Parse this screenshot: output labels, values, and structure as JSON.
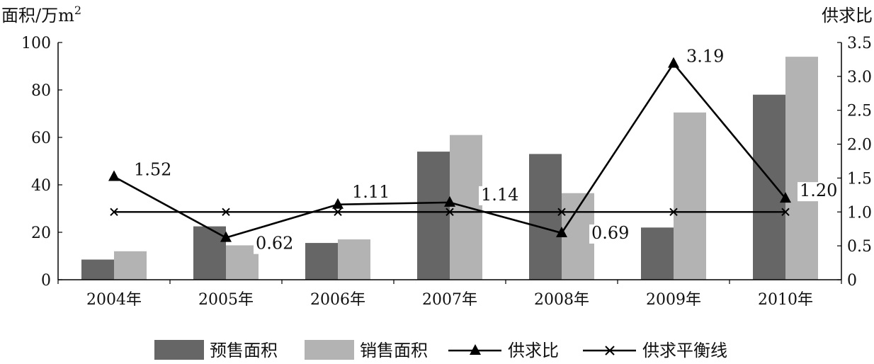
{
  "chart_data": {
    "type": "bar",
    "categories": [
      "2004年",
      "2005年",
      "2006年",
      "2007年",
      "2008年",
      "2009年",
      "2010年"
    ],
    "series": [
      {
        "name": "预售面积",
        "type": "bar",
        "axis": "left",
        "color": "#666666",
        "values": [
          8.5,
          22.5,
          15.5,
          54,
          53,
          22,
          78
        ]
      },
      {
        "name": "销售面积",
        "type": "bar",
        "axis": "left",
        "color": "#b3b3b3",
        "values": [
          12,
          14.5,
          17,
          61,
          36.5,
          70.5,
          94
        ]
      },
      {
        "name": "供求比",
        "type": "line",
        "axis": "right",
        "marker": "triangle",
        "color": "#000000",
        "values": [
          1.52,
          0.62,
          1.11,
          1.14,
          0.69,
          3.19,
          1.2
        ],
        "labels": [
          "1.52",
          "0.62",
          "1.11",
          "1.14",
          "0.69",
          "3.19",
          "1.20"
        ]
      },
      {
        "name": "供求平衡线",
        "type": "line",
        "axis": "right",
        "marker": "x",
        "color": "#000000",
        "values": [
          1,
          1,
          1,
          1,
          1,
          1,
          1
        ]
      }
    ],
    "ylabel_left": "面积/万m",
    "ylabel_left_sup": "2",
    "ylabel_right": "供求比",
    "ylim_left": [
      0,
      100
    ],
    "yticks_left": [
      "0",
      "20",
      "40",
      "60",
      "80",
      "100"
    ],
    "ylim_right": [
      0,
      3.5
    ],
    "yticks_right": [
      "0",
      "0.5",
      "1.0",
      "1.5",
      "2.0",
      "2.5",
      "3.0",
      "3.5"
    ],
    "grid": false,
    "legend_position": "bottom"
  }
}
